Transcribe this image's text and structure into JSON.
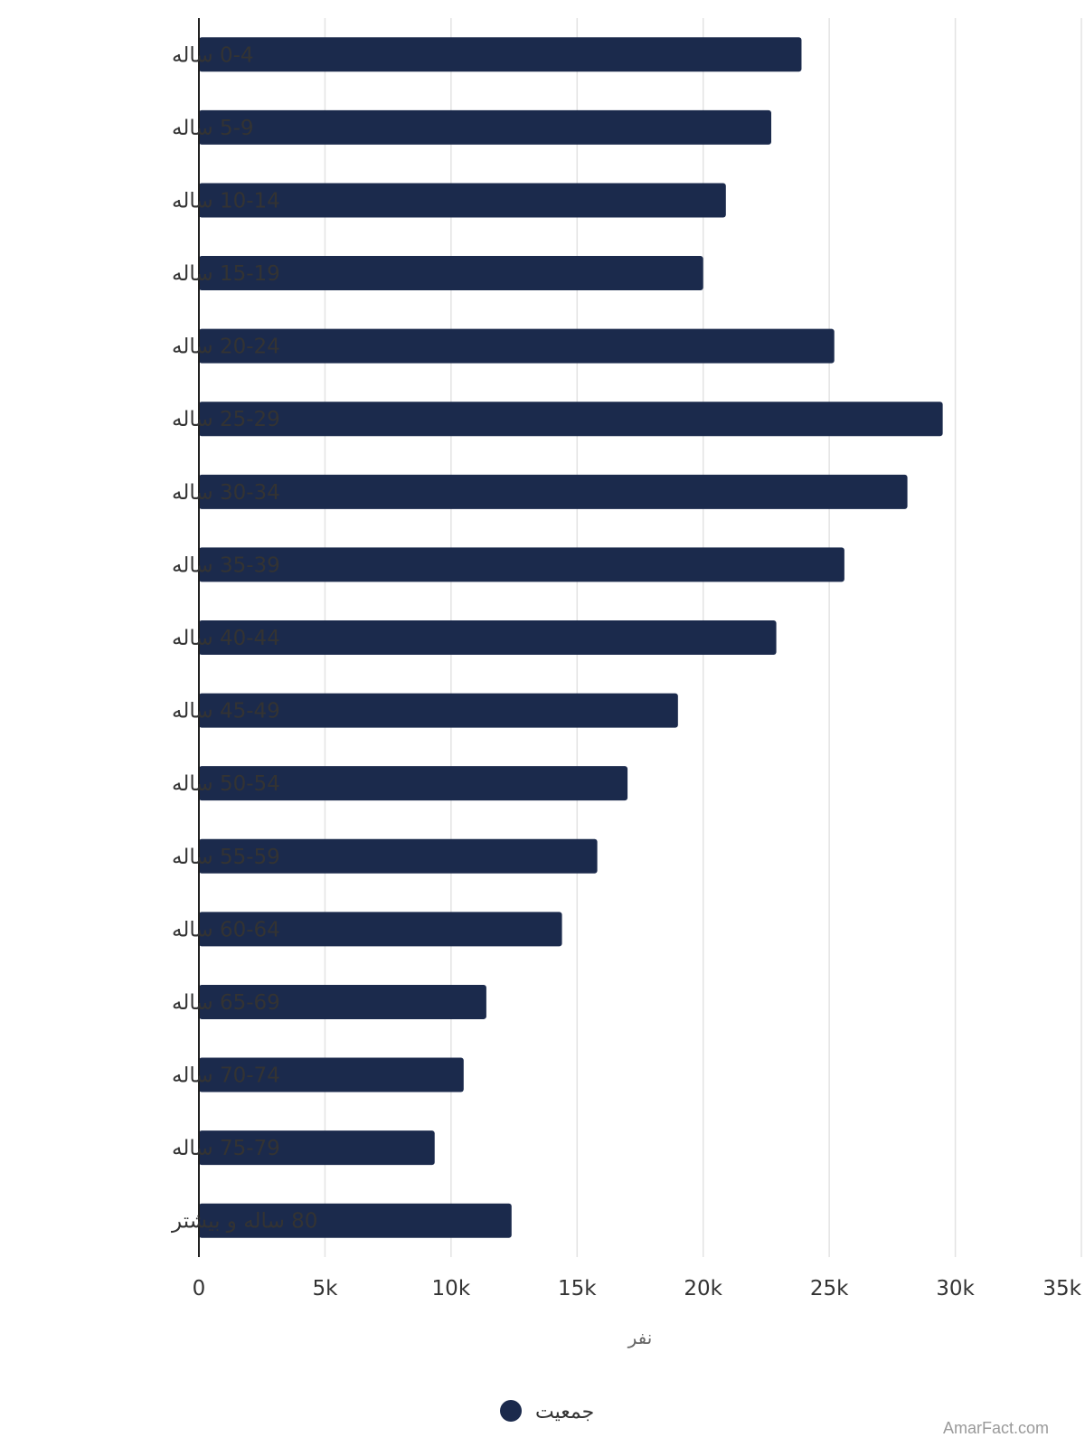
{
  "chart_data": {
    "type": "bar",
    "orientation": "horizontal",
    "categories": [
      "0-4 ساله",
      "5-9 ساله",
      "10-14 ساله",
      "15-19 ساله",
      "20-24 ساله",
      "25-29 ساله",
      "30-34 ساله",
      "35-39 ساله",
      "40-44 ساله",
      "45-49 ساله",
      "50-54 ساله",
      "55-59 ساله",
      "60-64 ساله",
      "65-69 ساله",
      "70-74 ساله",
      "75-79 ساله",
      "80 ساله و بیشتر"
    ],
    "series": [
      {
        "name": "جمعیت",
        "color": "#1b2a4c",
        "values": [
          23900,
          22700,
          20900,
          20000,
          25200,
          29500,
          28100,
          25600,
          22900,
          19000,
          17000,
          15800,
          14400,
          11400,
          10500,
          9350,
          12400
        ]
      }
    ],
    "xlabel": "نفر",
    "xlim": [
      0,
      35000
    ],
    "xticks": [
      0,
      5000,
      10000,
      15000,
      20000,
      25000,
      30000,
      35000
    ],
    "xtick_labels": [
      "0",
      "5k",
      "10k",
      "15k",
      "20k",
      "25k",
      "30k",
      "35k"
    ],
    "grid": true,
    "legend": "bottom-center"
  },
  "credit": "AmarFact.com"
}
